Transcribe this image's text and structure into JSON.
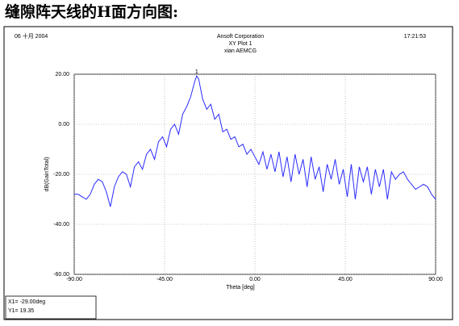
{
  "chart_data": {
    "type": "line",
    "title": "缝隙阵天线的H面方向图:",
    "plot_header": {
      "date": "06 十月 2004",
      "company": "Ansoft Corporation",
      "plot_name": "XY Plot 1",
      "subtitle": "xian AEMCG",
      "time": "17:21:53"
    },
    "x_label": "Theta [deg]",
    "y_label": "dB(GainTotal)",
    "xlim": [
      -90,
      90
    ],
    "ylim": [
      -60,
      20
    ],
    "xticks": [
      {
        "value": -90,
        "label": "-90.00"
      },
      {
        "value": -45,
        "label": "-45.00"
      },
      {
        "value": 0,
        "label": "0.00"
      },
      {
        "value": 45,
        "label": "45.00"
      },
      {
        "value": 90,
        "label": "90.00"
      }
    ],
    "yticks": [
      {
        "value": -60,
        "label": "-60.00"
      },
      {
        "value": -40,
        "label": "-40.00"
      },
      {
        "value": -20,
        "label": "-20.00"
      },
      {
        "value": 0,
        "label": "0.00"
      },
      {
        "value": 20,
        "label": "20.00"
      }
    ],
    "grid": true,
    "x": [
      -90,
      -88,
      -86,
      -84,
      -82,
      -80,
      -78,
      -76,
      -74,
      -72,
      -70,
      -68,
      -66,
      -64,
      -62,
      -60,
      -58,
      -56,
      -54,
      -52,
      -50,
      -48,
      -46,
      -44,
      -42,
      -40,
      -38,
      -36,
      -34,
      -32,
      -30,
      -29,
      -28,
      -26,
      -24,
      -22,
      -20,
      -18,
      -16,
      -14,
      -12,
      -10,
      -8,
      -6,
      -4,
      -2,
      0,
      2,
      4,
      6,
      8,
      10,
      12,
      14,
      16,
      18,
      20,
      22,
      24,
      26,
      28,
      30,
      32,
      34,
      36,
      38,
      40,
      42,
      44,
      46,
      48,
      50,
      52,
      54,
      56,
      58,
      60,
      62,
      64,
      66,
      68,
      70,
      72,
      74,
      76,
      78,
      80,
      82,
      84,
      86,
      88,
      90
    ],
    "series": [
      {
        "color": "#2b2bff",
        "values": [
          -28,
          -28,
          -29,
          -30,
          -28,
          -24,
          -22,
          -23,
          -27,
          -33,
          -25,
          -21,
          -19,
          -20,
          -25,
          -17,
          -15,
          -18,
          -12,
          -10,
          -14,
          -7,
          -5,
          -9,
          -2,
          0,
          -4,
          4,
          7,
          11,
          17,
          19.35,
          18,
          10,
          6,
          8,
          2,
          4,
          -3,
          -2,
          -6,
          -5,
          -9,
          -8,
          -12,
          -10,
          -13,
          -16,
          -11,
          -18,
          -12,
          -19,
          -11,
          -21,
          -13,
          -23,
          -12,
          -20,
          -14,
          -25,
          -13,
          -22,
          -17,
          -27,
          -16,
          -22,
          -14,
          -24,
          -18,
          -29,
          -16,
          -30,
          -17,
          -23,
          -17,
          -28,
          -18,
          -25,
          -18,
          -30,
          -19,
          -22,
          -20,
          -19,
          -22,
          -24,
          -26,
          -25,
          -24,
          -25,
          -28,
          -30
        ]
      }
    ],
    "marker": {
      "label": "1",
      "x": -29,
      "y": 19.35,
      "x_text": "X1= -29.00deg",
      "y_text": "Y1= 19.35"
    }
  }
}
